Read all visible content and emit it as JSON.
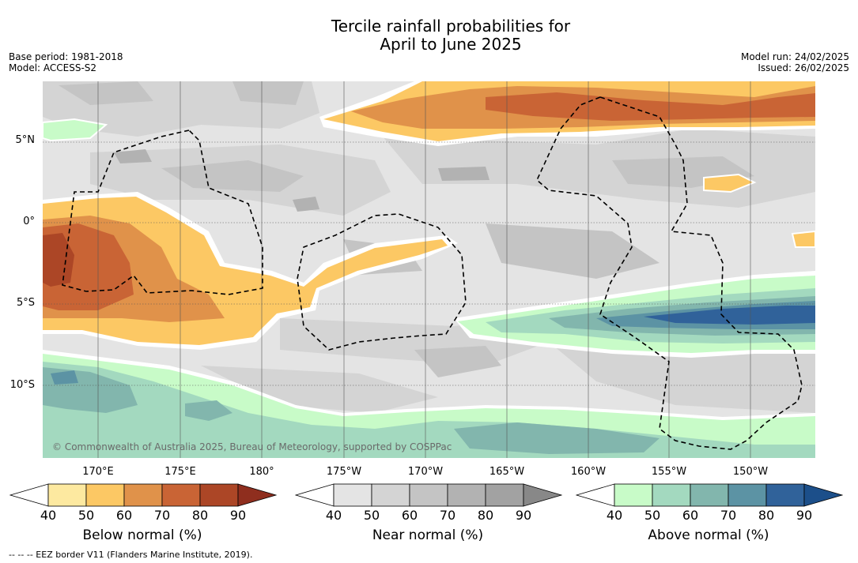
{
  "title_line1": "Tercile rainfall probabilities for",
  "title_line2": "April to June 2025",
  "meta_left": [
    "Base period: 1981-2018",
    "Model: ACCESS-S2"
  ],
  "meta_right": [
    "Model run: 24/02/2025",
    "Issued: 26/02/2025"
  ],
  "lat_labels": [
    "5°N",
    "0°",
    "5°S",
    "10°S"
  ],
  "lon_labels": [
    "170°E",
    "175°E",
    "180°",
    "175°W",
    "170°W",
    "165°W",
    "160°W",
    "155°W",
    "150°W"
  ],
  "copyright": "© Commonwealth of Australia 2025, Bureau of Meteorology, supported by COSPPac",
  "colorbars": [
    {
      "label": "Below normal (%)",
      "ticks": [
        "40",
        "50",
        "60",
        "70",
        "80",
        "90"
      ],
      "colors": [
        "#ffffff",
        "#fde9a0",
        "#fcc864",
        "#e0924a",
        "#c96435",
        "#ac4626",
        "#8f2e1e"
      ]
    },
    {
      "label": "Near normal (%)",
      "ticks": [
        "40",
        "50",
        "60",
        "70",
        "80",
        "90"
      ],
      "colors": [
        "#ffffff",
        "#e4e4e4",
        "#d4d4d4",
        "#c4c4c4",
        "#b2b2b2",
        "#a2a2a2",
        "#888888"
      ]
    },
    {
      "label": "Above normal (%)",
      "ticks": [
        "40",
        "50",
        "60",
        "70",
        "80",
        "90"
      ],
      "colors": [
        "#ffffff",
        "#c8fbc8",
        "#a3d9bf",
        "#82b6ad",
        "#5c93a4",
        "#30629a",
        "#1c4f8a"
      ]
    }
  ],
  "footnote": "--  --  -- EEZ border V11 (Flanders Marine Institute, 2019)."
}
